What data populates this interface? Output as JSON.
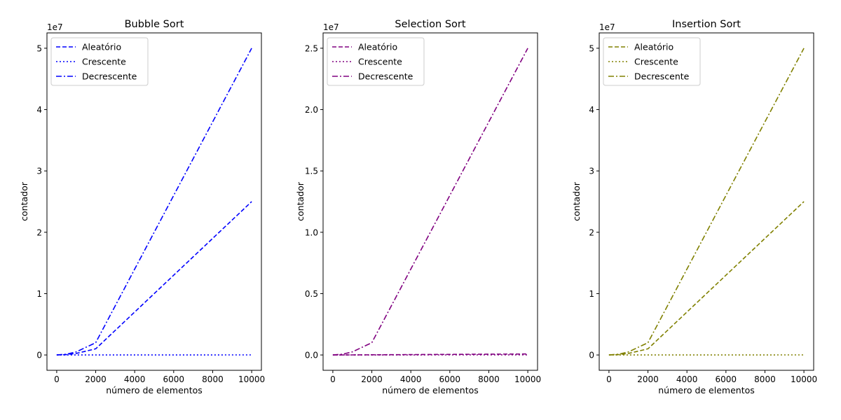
{
  "chart_data": [
    {
      "type": "line",
      "title": "Bubble Sort",
      "xlabel": "número de elementos",
      "ylabel": "contador",
      "y_offset_label": "1e7",
      "y_scale": 10000000,
      "xlim": [
        -500,
        10500
      ],
      "ylim": [
        -2500000,
        52500000
      ],
      "xticks": [
        0,
        2000,
        4000,
        6000,
        8000,
        10000
      ],
      "xtick_labels": [
        "0",
        "2000",
        "4000",
        "6000",
        "8000",
        "10000"
      ],
      "yticks": [
        0,
        10000000,
        20000000,
        30000000,
        40000000,
        50000000
      ],
      "ytick_labels": [
        "0",
        "1",
        "2",
        "3",
        "4",
        "5"
      ],
      "color": "#0000ff",
      "legend_position": "upper-left",
      "grid": false,
      "series": [
        {
          "name": "Aleatório",
          "style": "dashed",
          "x": [
            0,
            500,
            1000,
            2000,
            10000
          ],
          "y": [
            0,
            60000,
            250000,
            1000000,
            25000000
          ]
        },
        {
          "name": "Crescente",
          "style": "dotted",
          "x": [
            0,
            500,
            1000,
            2000,
            10000
          ],
          "y": [
            0,
            500,
            1000,
            2000,
            10000
          ]
        },
        {
          "name": "Decrescente",
          "style": "dashdot",
          "x": [
            0,
            500,
            1000,
            2000,
            10000
          ],
          "y": [
            0,
            125000,
            500000,
            2000000,
            50000000
          ]
        }
      ]
    },
    {
      "type": "line",
      "title": "Selection Sort",
      "xlabel": "número de elementos",
      "ylabel": "contador",
      "y_offset_label": "1e7",
      "y_scale": 10000000,
      "xlim": [
        -500,
        10500
      ],
      "ylim": [
        -1250000,
        26250000
      ],
      "xticks": [
        0,
        2000,
        4000,
        6000,
        8000,
        10000
      ],
      "xtick_labels": [
        "0",
        "2000",
        "4000",
        "6000",
        "8000",
        "10000"
      ],
      "yticks": [
        0,
        5000000,
        10000000,
        15000000,
        20000000,
        25000000
      ],
      "ytick_labels": [
        "0.0",
        "0.5",
        "1.0",
        "1.5",
        "2.0",
        "2.5"
      ],
      "color": "#800080",
      "legend_position": "upper-left",
      "grid": false,
      "series": [
        {
          "name": "Aleatório",
          "style": "dashed",
          "x": [
            0,
            500,
            1000,
            2000,
            10000
          ],
          "y": [
            0,
            3000,
            6000,
            14000,
            80000
          ]
        },
        {
          "name": "Crescente",
          "style": "dotted",
          "x": [
            0,
            500,
            1000,
            2000,
            10000
          ],
          "y": [
            0,
            500,
            1000,
            2000,
            10000
          ]
        },
        {
          "name": "Decrescente",
          "style": "dashdot",
          "x": [
            0,
            500,
            1000,
            2000,
            10000
          ],
          "y": [
            0,
            62000,
            250000,
            1000000,
            25000000
          ]
        }
      ]
    },
    {
      "type": "line",
      "title": "Insertion Sort",
      "xlabel": "número de elementos",
      "ylabel": "contador",
      "y_offset_label": "1e7",
      "y_scale": 10000000,
      "xlim": [
        -500,
        10500
      ],
      "ylim": [
        -2500000,
        52500000
      ],
      "xticks": [
        0,
        2000,
        4000,
        6000,
        8000,
        10000
      ],
      "xtick_labels": [
        "0",
        "2000",
        "4000",
        "6000",
        "8000",
        "10000"
      ],
      "yticks": [
        0,
        10000000,
        20000000,
        30000000,
        40000000,
        50000000
      ],
      "ytick_labels": [
        "0",
        "1",
        "2",
        "3",
        "4",
        "5"
      ],
      "color": "#808000",
      "legend_position": "upper-left",
      "grid": false,
      "series": [
        {
          "name": "Aleatório",
          "style": "dashed",
          "x": [
            0,
            500,
            1000,
            2000,
            10000
          ],
          "y": [
            0,
            60000,
            250000,
            1000000,
            25000000
          ]
        },
        {
          "name": "Crescente",
          "style": "dotted",
          "x": [
            0,
            500,
            1000,
            2000,
            10000
          ],
          "y": [
            0,
            500,
            1000,
            2000,
            10000
          ]
        },
        {
          "name": "Decrescente",
          "style": "dashdot",
          "x": [
            0,
            500,
            1000,
            2000,
            10000
          ],
          "y": [
            0,
            125000,
            500000,
            2000000,
            50000000
          ]
        }
      ]
    }
  ]
}
